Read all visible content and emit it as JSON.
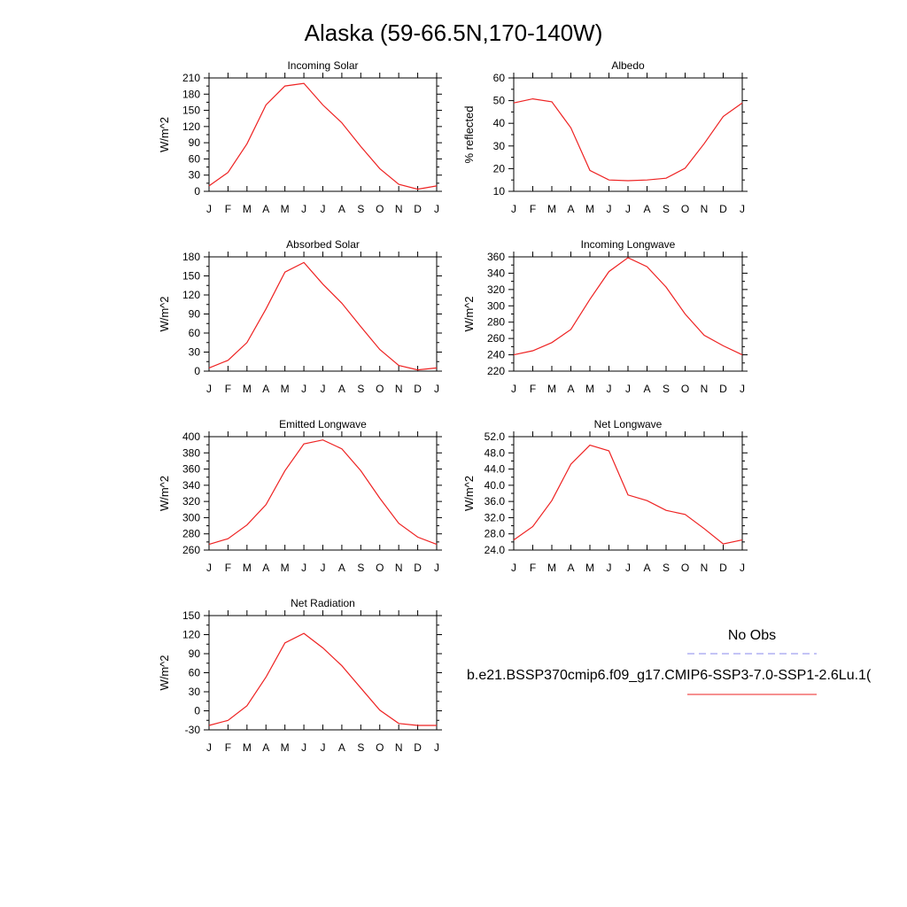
{
  "page_title": "Alaska (59-66.5N,170-140W)",
  "months": [
    "J",
    "F",
    "M",
    "A",
    "M",
    "J",
    "J",
    "A",
    "S",
    "O",
    "N",
    "D",
    "J"
  ],
  "colors": {
    "model_line": "#ee2222",
    "obs_line": "#8888ee",
    "axis": "#000000"
  },
  "legend": {
    "obs_label": "No Obs",
    "model_label": "b.e21.BSSP370cmip6.f09_g17.CMIP6-SSP3-7.0-SSP1-2.6Lu.1("
  },
  "chart_data": [
    {
      "id": "incoming-solar",
      "type": "line",
      "title": "Incoming Solar",
      "ylabel": "W/m^2",
      "ylim": [
        0,
        210
      ],
      "yticks": [
        "0",
        "30",
        "60",
        "90",
        "120",
        "150",
        "180",
        "210"
      ],
      "ytick_values": [
        0,
        30,
        60,
        90,
        120,
        150,
        180,
        210
      ],
      "values": [
        10,
        35,
        88,
        160,
        195,
        200,
        160,
        127,
        83,
        42,
        13,
        4,
        10
      ]
    },
    {
      "id": "albedo",
      "type": "line",
      "title": "Albedo",
      "ylabel": "% reflected",
      "ylim": [
        10,
        60
      ],
      "yticks": [
        "10",
        "20",
        "30",
        "40",
        "50",
        "60"
      ],
      "ytick_values": [
        10,
        20,
        30,
        40,
        50,
        60
      ],
      "values": [
        49,
        50.8,
        49.5,
        38,
        19.2,
        15,
        14.7,
        15,
        15.8,
        20.2,
        31,
        43,
        49
      ]
    },
    {
      "id": "absorbed-solar",
      "type": "line",
      "title": "Absorbed Solar",
      "ylabel": "W/m^2",
      "ylim": [
        0,
        180
      ],
      "yticks": [
        "0",
        "30",
        "60",
        "90",
        "120",
        "150",
        "180"
      ],
      "ytick_values": [
        0,
        30,
        60,
        90,
        120,
        150,
        180
      ],
      "values": [
        5,
        17,
        45,
        98,
        156,
        171,
        137,
        107,
        70,
        34,
        9,
        2,
        5
      ]
    },
    {
      "id": "incoming-longwave",
      "type": "line",
      "title": "Incoming Longwave",
      "ylabel": "W/m^2",
      "ylim": [
        220,
        360
      ],
      "yticks": [
        "220",
        "240",
        "260",
        "280",
        "300",
        "320",
        "340",
        "360"
      ],
      "ytick_values": [
        220,
        240,
        260,
        280,
        300,
        320,
        340,
        360
      ],
      "values": [
        240,
        245,
        255,
        271,
        308,
        342,
        359,
        348,
        323,
        290,
        264,
        251,
        240
      ]
    },
    {
      "id": "emitted-longwave",
      "type": "line",
      "title": "Emitted Longwave",
      "ylabel": "W/m^2",
      "ylim": [
        260,
        400
      ],
      "yticks": [
        "260",
        "280",
        "300",
        "320",
        "340",
        "360",
        "380",
        "400"
      ],
      "ytick_values": [
        260,
        280,
        300,
        320,
        340,
        360,
        380,
        400
      ],
      "values": [
        267,
        274,
        291,
        316,
        358,
        391,
        396,
        385,
        358,
        324,
        293,
        276,
        267
      ]
    },
    {
      "id": "net-longwave",
      "type": "line",
      "title": "Net Longwave",
      "ylabel": "W/m^2",
      "ylim": [
        24,
        52
      ],
      "yticks": [
        "24.0",
        "28.0",
        "32.0",
        "36.0",
        "40.0",
        "44.0",
        "48.0",
        "52.0"
      ],
      "ytick_values": [
        24,
        28,
        32,
        36,
        40,
        44,
        48,
        52
      ],
      "values": [
        26.5,
        29.8,
        36.2,
        45.2,
        49.9,
        48.5,
        37.6,
        36.2,
        33.8,
        32.8,
        29.3,
        25.5,
        26.5
      ]
    },
    {
      "id": "net-radiation",
      "type": "line",
      "title": "Net Radiation",
      "ylabel": "W/m^2",
      "ylim": [
        -30,
        150
      ],
      "yticks": [
        "-30",
        "0",
        "30",
        "60",
        "90",
        "120",
        "150"
      ],
      "ytick_values": [
        -30,
        0,
        30,
        60,
        90,
        120,
        150
      ],
      "values": [
        -23,
        -15,
        8,
        53,
        107,
        122,
        99,
        71,
        36,
        1,
        -20,
        -23,
        -23
      ]
    }
  ]
}
